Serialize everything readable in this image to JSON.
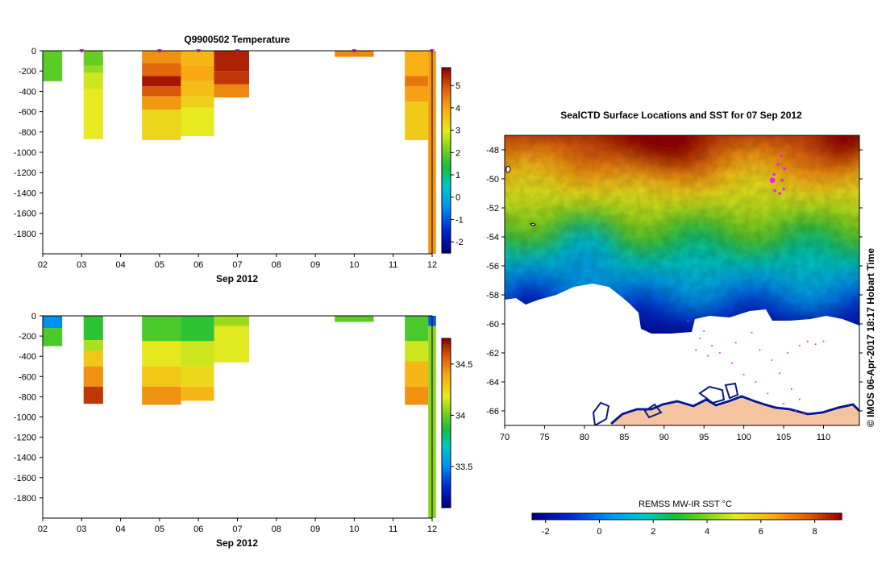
{
  "chart_data": [
    {
      "type": "heatmap",
      "id": "temperature",
      "title": "Q9900502  Temperature",
      "xlabel": "Sep 2012",
      "xticks": [
        "02",
        "03",
        "04",
        "05",
        "06",
        "07",
        "08",
        "09",
        "10",
        "11",
        "12"
      ],
      "xlim": [
        2,
        12
      ],
      "ylim": [
        -2000,
        0
      ],
      "yticks": [
        0,
        -200,
        -400,
        -600,
        -800,
        -1000,
        -1200,
        -1400,
        -1600,
        -1800
      ],
      "colorbar": {
        "min": -2.5,
        "max": 5.8,
        "ticks": [
          5,
          4,
          3,
          2,
          1,
          0,
          -1,
          -2
        ]
      },
      "profile_markers_x": [
        3.0,
        5.0,
        6.0,
        7.0,
        10.0,
        12.0
      ],
      "profiles": [
        {
          "x0": 2.0,
          "x1": 2.5,
          "maxdepth": -300,
          "layers": [
            [
              0,
              -300,
              1.9
            ]
          ]
        },
        {
          "x0": 3.05,
          "x1": 3.55,
          "maxdepth": -870,
          "layers": [
            [
              0,
              -150,
              2.0
            ],
            [
              -150,
              -220,
              2.4
            ],
            [
              -220,
              -380,
              2.8
            ],
            [
              -380,
              -870,
              3.0
            ]
          ]
        },
        {
          "x0": 4.55,
          "x1": 5.55,
          "maxdepth": -880,
          "layers": [
            [
              0,
              -120,
              4.3
            ],
            [
              -120,
              -250,
              4.8
            ],
            [
              -250,
              -350,
              5.6
            ],
            [
              -350,
              -450,
              5.0
            ],
            [
              -450,
              -580,
              4.2
            ],
            [
              -580,
              -880,
              3.3
            ]
          ]
        },
        {
          "x0": 5.55,
          "x1": 6.4,
          "maxdepth": -840,
          "layers": [
            [
              0,
              -150,
              3.8
            ],
            [
              -150,
              -300,
              4.0
            ],
            [
              -300,
              -450,
              3.7
            ],
            [
              -450,
              -560,
              3.4
            ],
            [
              -560,
              -840,
              3.0
            ]
          ]
        },
        {
          "x0": 6.4,
          "x1": 7.3,
          "maxdepth": -460,
          "layers": [
            [
              0,
              -200,
              5.5
            ],
            [
              -200,
              -330,
              5.3
            ],
            [
              -330,
              -460,
              4.4
            ]
          ]
        },
        {
          "x0": 9.5,
          "x1": 10.5,
          "maxdepth": -60,
          "layers": [
            [
              0,
              -60,
              4.4
            ]
          ]
        },
        {
          "x0": 11.3,
          "x1": 11.9,
          "maxdepth": -880,
          "layers": [
            [
              0,
              -250,
              3.9
            ],
            [
              -250,
              -350,
              4.6
            ],
            [
              -350,
              -500,
              4.1
            ],
            [
              -500,
              -880,
              3.5
            ]
          ]
        },
        {
          "x0": 11.9,
          "x1": 12.1,
          "maxdepth": -2000,
          "layers": [
            [
              0,
              -2000,
              4.2
            ]
          ]
        }
      ]
    },
    {
      "type": "heatmap",
      "id": "salinity",
      "title": "",
      "xlabel": "Sep 2012",
      "xticks": [
        "02",
        "03",
        "04",
        "05",
        "06",
        "07",
        "08",
        "09",
        "10",
        "11",
        "12"
      ],
      "xlim": [
        2,
        12
      ],
      "ylim": [
        -2000,
        0
      ],
      "yticks": [
        0,
        -200,
        -400,
        -600,
        -800,
        -1000,
        -1200,
        -1400,
        -1600,
        -1800
      ],
      "colorbar": {
        "min": 33.1,
        "max": 34.75,
        "ticks": [
          34.5,
          34,
          33.5
        ],
        "tick_labels": [
          "34.5",
          "34",
          "33.5"
        ]
      },
      "profiles": [
        {
          "x0": 2.0,
          "x1": 2.5,
          "maxdepth": -300,
          "layers": [
            [
              0,
              -120,
              33.5
            ],
            [
              -120,
              -300,
              33.95
            ]
          ]
        },
        {
          "x0": 3.05,
          "x1": 3.55,
          "maxdepth": -870,
          "layers": [
            [
              0,
              -240,
              33.9
            ],
            [
              -240,
              -350,
              34.1
            ],
            [
              -350,
              -500,
              34.3
            ],
            [
              -500,
              -700,
              34.45
            ],
            [
              -700,
              -870,
              34.65
            ]
          ]
        },
        {
          "x0": 4.55,
          "x1": 5.55,
          "maxdepth": -880,
          "layers": [
            [
              0,
              -250,
              33.95
            ],
            [
              -250,
              -500,
              34.2
            ],
            [
              -500,
              -700,
              34.3
            ],
            [
              -700,
              -880,
              34.45
            ]
          ]
        },
        {
          "x0": 5.55,
          "x1": 6.4,
          "maxdepth": -840,
          "layers": [
            [
              0,
              -250,
              33.9
            ],
            [
              -250,
              -500,
              34.15
            ],
            [
              -500,
              -700,
              34.25
            ],
            [
              -700,
              -840,
              34.35
            ]
          ]
        },
        {
          "x0": 6.4,
          "x1": 7.3,
          "maxdepth": -460,
          "layers": [
            [
              0,
              -100,
              34.08
            ],
            [
              -100,
              -460,
              34.18
            ]
          ]
        },
        {
          "x0": 9.5,
          "x1": 10.5,
          "maxdepth": -60,
          "layers": [
            [
              0,
              -60,
              33.97
            ]
          ]
        },
        {
          "x0": 11.3,
          "x1": 11.9,
          "maxdepth": -880,
          "layers": [
            [
              0,
              -250,
              33.95
            ],
            [
              -250,
              -450,
              34.15
            ],
            [
              -450,
              -700,
              34.35
            ],
            [
              -700,
              -880,
              34.45
            ]
          ]
        },
        {
          "x0": 11.9,
          "x1": 12.1,
          "maxdepth": -2000,
          "layers": [
            [
              0,
              -100,
              33.4
            ],
            [
              -100,
              -2000,
              34.05
            ]
          ]
        }
      ]
    },
    {
      "type": "heatmap",
      "id": "sst_map",
      "title": "SealCTD Surface Locations and SST for 07 Sep 2012",
      "xlim": [
        70,
        114.5
      ],
      "ylim": [
        -67,
        -47
      ],
      "xticks": [
        70,
        75,
        80,
        85,
        90,
        95,
        100,
        105,
        110
      ],
      "yticks": [
        -48,
        -50,
        -52,
        -54,
        -56,
        -58,
        -60,
        -62,
        -64,
        -66
      ],
      "colorbar": {
        "label": "REMSS MW-IR SST °C",
        "min": -2.5,
        "max": 9,
        "ticks": [
          -2,
          0,
          2,
          4,
          6,
          8
        ]
      },
      "seal_locations": [
        [
          104.7,
          -48.4
        ],
        [
          104.3,
          -49.0
        ],
        [
          105.1,
          -49.3
        ],
        [
          103.8,
          -49.7
        ],
        [
          104.8,
          -50.1
        ],
        [
          103.6,
          -50.1
        ],
        [
          105.0,
          -50.7
        ],
        [
          103.9,
          -50.8
        ],
        [
          104.5,
          -51.0
        ]
      ],
      "current_location": [
        103.6,
        -50.1
      ],
      "track": [
        [
          93,
          -59.8
        ],
        [
          95,
          -60.5
        ],
        [
          96,
          -61.5
        ],
        [
          97,
          -62.0
        ],
        [
          98.5,
          -62.7
        ],
        [
          100,
          -63.5
        ],
        [
          101.5,
          -64.0
        ],
        [
          103,
          -64.8
        ],
        [
          105,
          -65.5
        ],
        [
          106.5,
          -66.0
        ],
        [
          107.5,
          -66.2
        ],
        [
          94.5,
          -61.0
        ],
        [
          94.0,
          -61.8
        ],
        [
          95.5,
          -62.2
        ],
        [
          99,
          -61.3
        ],
        [
          101,
          -60.6
        ],
        [
          102,
          -61.8
        ],
        [
          103.5,
          -62.5
        ],
        [
          104.5,
          -63.4
        ],
        [
          106,
          -64.5
        ],
        [
          107,
          -65.2
        ],
        [
          105.5,
          -62.0
        ],
        [
          107,
          -61.5
        ],
        [
          108,
          -61.2
        ],
        [
          109,
          -61.4
        ],
        [
          110,
          -61.2
        ]
      ]
    }
  ],
  "timestamp": "© IMOS 06-Apr-2017 18:17 Hobart Time",
  "colors": {
    "marker": "#ee22ee",
    "land": "#f4c4a0",
    "coast": "#0a1a8a"
  }
}
